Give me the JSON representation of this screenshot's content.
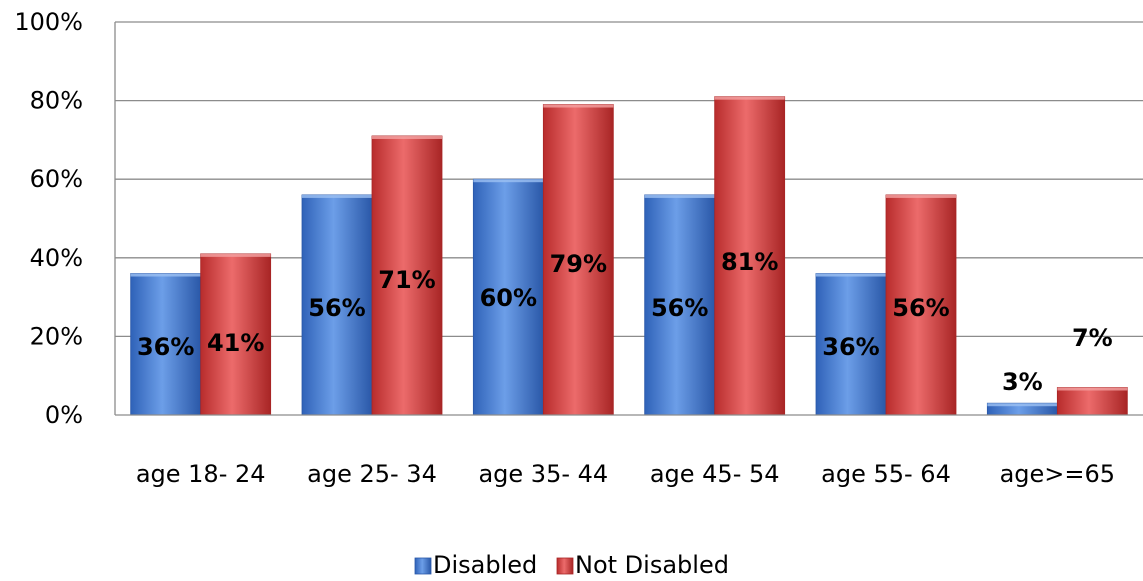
{
  "chart_data": {
    "type": "bar",
    "categories": [
      "age 18- 24",
      "age 25- 34",
      "age 35- 44",
      "age 45- 54",
      "age 55- 64",
      "age>=65"
    ],
    "series": [
      {
        "name": "Disabled",
        "values": [
          36,
          56,
          60,
          56,
          36,
          3
        ],
        "labels": [
          "36%",
          "56%",
          "60%",
          "56%",
          "36%",
          "3%"
        ],
        "color": "#4a80d6"
      },
      {
        "name": "Not Disabled",
        "values": [
          41,
          71,
          79,
          81,
          56,
          7
        ],
        "labels": [
          "41%",
          "71%",
          "79%",
          "81%",
          "56%",
          "7%"
        ],
        "color": "#d94343"
      }
    ],
    "ylim": [
      0,
      100
    ],
    "yticks": [
      "0%",
      "20%",
      "40%",
      "60%",
      "80%",
      "100%"
    ],
    "grid": true,
    "legend": "bottom"
  }
}
